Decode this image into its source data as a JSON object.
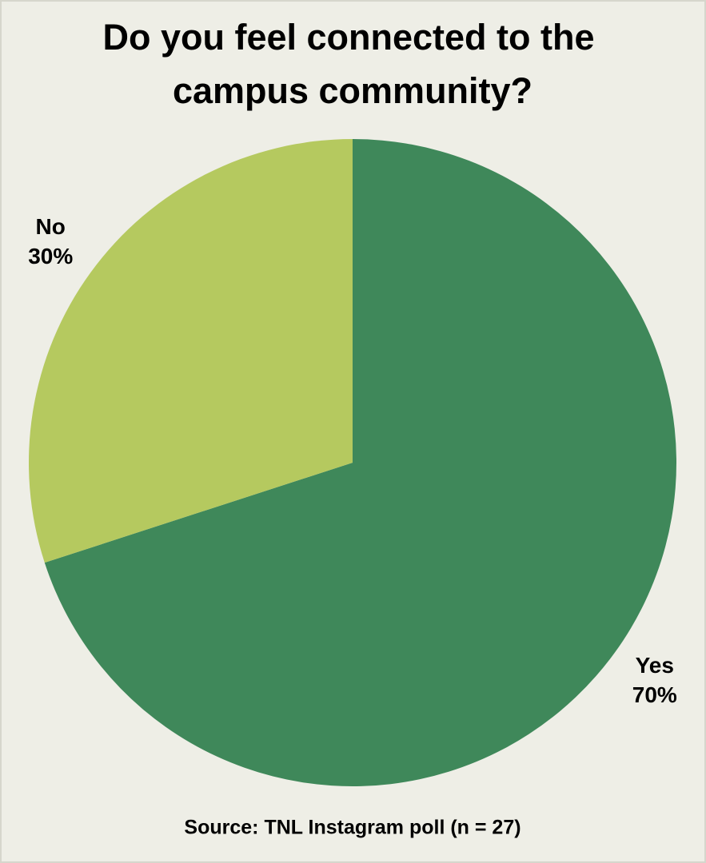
{
  "chart_data": {
    "type": "pie",
    "title": [
      "Do you feel connected to the",
      "campus community?"
    ],
    "categories": [
      "Yes",
      "No"
    ],
    "values": [
      70,
      30
    ],
    "value_labels": [
      "70%",
      "30%"
    ],
    "colors": [
      "#3f885a",
      "#b5c95f"
    ],
    "source": "Source: TNL Instagram poll (n = 27)"
  }
}
